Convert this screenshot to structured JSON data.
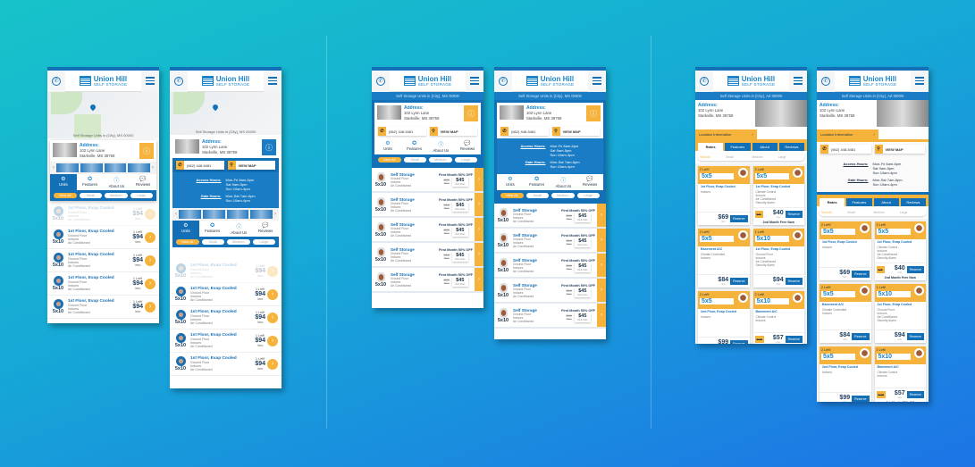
{
  "brand": {
    "name": "Union Hill",
    "sub": "SELF STORAGE"
  },
  "location_ms": "Self Storage Units in {City}, MS 00000",
  "location_az": "Self Storage Units in {City}, AZ 00000",
  "address": {
    "label": "Address:",
    "line1": "102 Lynn Lane",
    "line2": "Starkville, MS 39759"
  },
  "phone": "(662) 448-5481",
  "view_map": "VIEW MAP",
  "access": {
    "label": "Access Hours:",
    "lines": [
      "Mon-Fri 8am-6pm",
      "Sat 9am-5pm",
      "Sun 10am-4pm"
    ]
  },
  "gate": {
    "label": "Gate Hours:",
    "lines": [
      "Mon-Sat 7am-6pm",
      "Sun 10am-4pm"
    ]
  },
  "nav": [
    {
      "label": "Units",
      "icon": "gear-icon",
      "glyph": "⚙"
    },
    {
      "label": "Features",
      "icon": "check-badge-icon",
      "glyph": "✪"
    },
    {
      "label": "About Us",
      "icon": "info-icon",
      "glyph": "ⓘ"
    },
    {
      "label": "Reviews",
      "icon": "chat-icon",
      "glyph": "💬"
    }
  ],
  "filters": [
    "View All",
    "Small",
    "Medium",
    "Large"
  ],
  "location_info": "Location Information",
  "tabs": [
    "Rates",
    "Features",
    "About",
    "Reviews"
  ],
  "unit_a": {
    "size": "5x10",
    "title": "1st Floor, Evap Cooled",
    "features": [
      "Ground Floor",
      "Indoors",
      "Air Conditioned"
    ],
    "left": "1 Left!",
    "price": "$94",
    "per": "/mo"
  },
  "unit_b": {
    "size": "5x10",
    "title": "Self Storage",
    "features": [
      "Ground Floor",
      "Indoors",
      "Air Conditioned"
    ],
    "promo": "First Month 50% OFF",
    "old": "$50",
    "old_label": "Price",
    "new": "$45",
    "new_label": "Web Rate"
  },
  "cards": [
    {
      "left": "2 Left!",
      "size": "5x5",
      "title": "1st Floor, Evap Cooled",
      "features": [
        "Indoors"
      ],
      "old": "",
      "price": "$69",
      "per": "/mo",
      "note": ""
    },
    {
      "left": "2 Left!",
      "size": "5x5",
      "title": "1st Floor, Evap Cooled",
      "features": [
        "Climate Control",
        "Indoors",
        "Air Conditioned",
        "Security Alarm"
      ],
      "old": "$75",
      "price": "$40",
      "per": "/mo",
      "note": "2nd Month Free Now"
    },
    {
      "left": "2 Left!",
      "size": "5x5",
      "title": "Basement A/C",
      "features": [
        "Climate Controlled",
        "Indoors"
      ],
      "old": "",
      "price": "$84",
      "per": "/mo",
      "note": ""
    },
    {
      "left": "1 Left!",
      "size": "5x10",
      "title": "1st Floor, Evap Cooled",
      "features": [
        "Ground Floor",
        "Indoors",
        "Air Conditioned",
        "Security Alarm"
      ],
      "old": "",
      "price": "$94",
      "per": "/mo",
      "note": ""
    },
    {
      "left": "2 Left!",
      "size": "5x5",
      "title": "2nd Floor, Evap Cooled",
      "features": [
        "Indoors"
      ],
      "old": "",
      "price": "$99",
      "per": "/mo",
      "note": ""
    },
    {
      "left": "2 Left!",
      "size": "5x10",
      "title": "Basement A/C",
      "features": [
        "Climate Control",
        "Indoors"
      ],
      "old": "$115",
      "price": "$57",
      "per": "/mo",
      "note": "1st Month 50% Off"
    }
  ],
  "reserve": "Reserve",
  "colors": {
    "blue": "#1370b6",
    "orange": "#f6b33b",
    "bg_start": "#17c3c9",
    "bg_end": "#1d74e6"
  }
}
